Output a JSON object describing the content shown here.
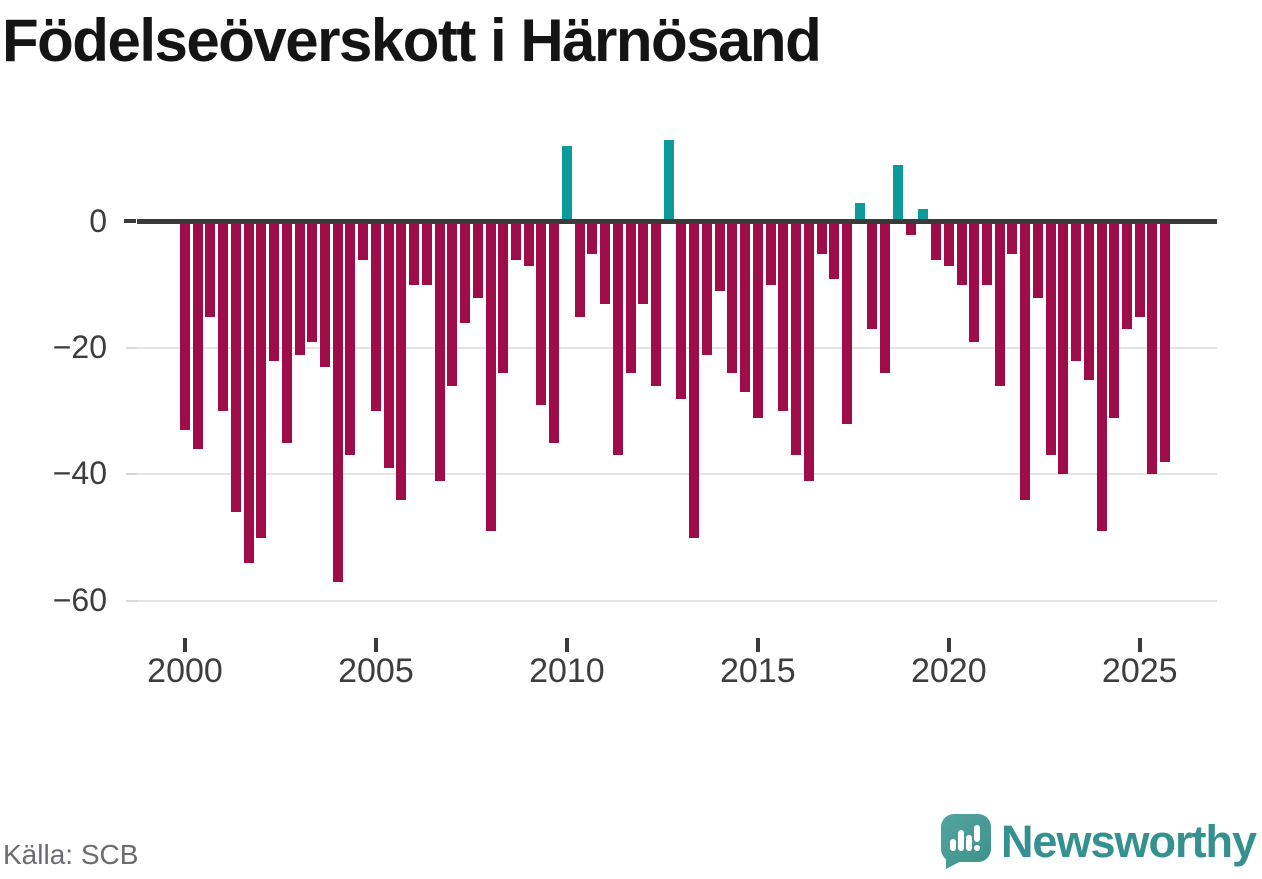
{
  "title": "Födelseöverskott i Härnösand",
  "source_caption": "Källa: SCB",
  "branding": {
    "wordmark": "Newsworthy",
    "wordmark_color": "#35918f",
    "mark_color": "#4a9c98",
    "mark_color_dark": "#3f928b"
  },
  "colors": {
    "negative_bar": "#9e0d48",
    "positive_bar": "#0d9a9a",
    "axis_line": "#3a3a3a",
    "gridline": "#e4e4e4",
    "tick_label": "#3d3d3d",
    "title": "#141414",
    "source": "#6b6b72",
    "background": "#ffffff"
  },
  "chart_data": {
    "type": "bar",
    "title": "Födelseöverskott i Härnösand",
    "xlabel": "",
    "ylabel": "",
    "x_start_year": 2000,
    "bars_per_year": 3,
    "ylim": [
      -67,
      15
    ],
    "grid": true,
    "legend": false,
    "values": [
      -33,
      -36,
      -15,
      -30,
      -46,
      -54,
      -50,
      -22,
      -35,
      -21,
      -19,
      -23,
      -57,
      -37,
      -6,
      -30,
      -39,
      -44,
      -10,
      -10,
      -41,
      -26,
      -16,
      -12,
      -49,
      -24,
      -6,
      -7,
      -29,
      -35,
      12,
      -15,
      -5,
      -13,
      -37,
      -24,
      -13,
      -26,
      13,
      -28,
      -50,
      -21,
      -11,
      -24,
      -27,
      -31,
      -10,
      -30,
      -37,
      -41,
      -5,
      -9,
      -32,
      3,
      -17,
      -24,
      9,
      -2,
      2,
      -6,
      -7,
      -10,
      -19,
      -10,
      -26,
      -5,
      -44,
      -12,
      -37,
      -40,
      -22,
      -25,
      -49,
      -31,
      -17,
      -15,
      -40,
      -38
    ],
    "positive_color": "#0d9a9a",
    "negative_color": "#9e0d48",
    "y_ticks": [
      {
        "label": "0",
        "value": 0
      },
      {
        "label": "−20",
        "value": -20
      },
      {
        "label": "−40",
        "value": -40
      },
      {
        "label": "−60",
        "value": -60
      }
    ],
    "x_ticks": [
      {
        "label": "2000",
        "index": 0
      },
      {
        "label": "2005",
        "index": 15
      },
      {
        "label": "2010",
        "index": 30
      },
      {
        "label": "2015",
        "index": 45
      },
      {
        "label": "2020",
        "index": 60
      },
      {
        "label": "2025",
        "index": 75
      }
    ]
  }
}
